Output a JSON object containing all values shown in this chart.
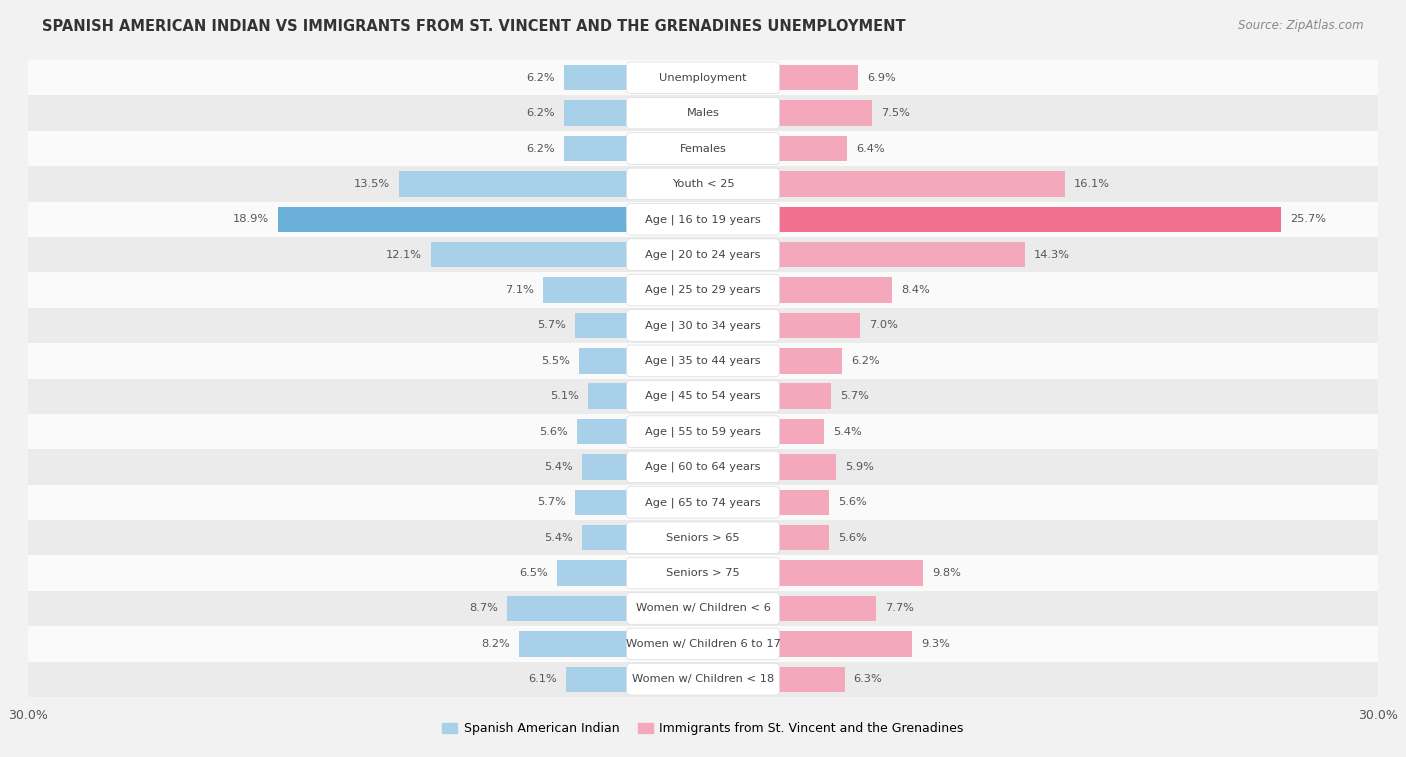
{
  "title": "SPANISH AMERICAN INDIAN VS IMMIGRANTS FROM ST. VINCENT AND THE GRENADINES UNEMPLOYMENT",
  "source": "Source: ZipAtlas.com",
  "categories": [
    "Unemployment",
    "Males",
    "Females",
    "Youth < 25",
    "Age | 16 to 19 years",
    "Age | 20 to 24 years",
    "Age | 25 to 29 years",
    "Age | 30 to 34 years",
    "Age | 35 to 44 years",
    "Age | 45 to 54 years",
    "Age | 55 to 59 years",
    "Age | 60 to 64 years",
    "Age | 65 to 74 years",
    "Seniors > 65",
    "Seniors > 75",
    "Women w/ Children < 6",
    "Women w/ Children 6 to 17",
    "Women w/ Children < 18"
  ],
  "left_values": [
    6.2,
    6.2,
    6.2,
    13.5,
    18.9,
    12.1,
    7.1,
    5.7,
    5.5,
    5.1,
    5.6,
    5.4,
    5.7,
    5.4,
    6.5,
    8.7,
    8.2,
    6.1
  ],
  "right_values": [
    6.9,
    7.5,
    6.4,
    16.1,
    25.7,
    14.3,
    8.4,
    7.0,
    6.2,
    5.7,
    5.4,
    5.9,
    5.6,
    5.6,
    9.8,
    7.7,
    9.3,
    6.3
  ],
  "left_color_normal": "#a8d0e8",
  "right_color_normal": "#f4a8bb",
  "left_color_highlight": "#6ab0d8",
  "right_color_highlight": "#f07090",
  "highlight_row": 4,
  "axis_limit": 30.0,
  "left_label": "Spanish American Indian",
  "right_label": "Immigrants from St. Vincent and the Grenadines",
  "bg_color": "#f2f2f2",
  "row_bg_light": "#fafafa",
  "row_bg_dark": "#ebebeb"
}
